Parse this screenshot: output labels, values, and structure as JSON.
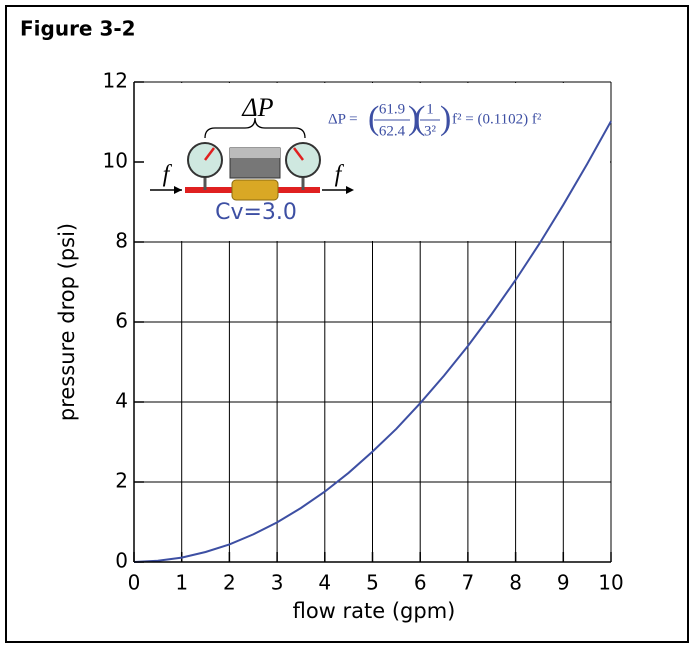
{
  "chart_data": {
    "type": "line",
    "title": "Figure 3-2",
    "x_label": "flow rate (gpm)",
    "y_label": "pressure drop (psi)",
    "x": [
      0,
      0.5,
      1,
      1.5,
      2,
      2.5,
      3,
      3.5,
      4,
      4.5,
      5,
      5.5,
      6,
      6.5,
      7,
      7.5,
      8,
      8.5,
      9,
      9.5,
      10
    ],
    "values": [
      0,
      0.03,
      0.11,
      0.25,
      0.44,
      0.69,
      0.99,
      1.35,
      1.76,
      2.23,
      2.76,
      3.33,
      3.97,
      4.66,
      5.4,
      6.2,
      7.05,
      7.96,
      8.93,
      9.95,
      11.02
    ],
    "color": "#3d4fa3",
    "xlim": [
      0,
      10
    ],
    "ylim": [
      0,
      12
    ],
    "xticks": [
      0,
      1,
      2,
      3,
      4,
      5,
      6,
      7,
      8,
      9,
      10
    ],
    "yticks": [
      0,
      2,
      4,
      6,
      8,
      10,
      12
    ],
    "grid": true,
    "annotations": {
      "delta_p": "ΔP",
      "flow_in": "f",
      "flow_out": "f",
      "cv": "Cv=3.0",
      "formula": {
        "lhs": "ΔP =",
        "num1": "61.9",
        "den1": "62.4",
        "num2": "1",
        "den2": "3²",
        "rhs": "f² = (0.1102) f²"
      }
    }
  }
}
